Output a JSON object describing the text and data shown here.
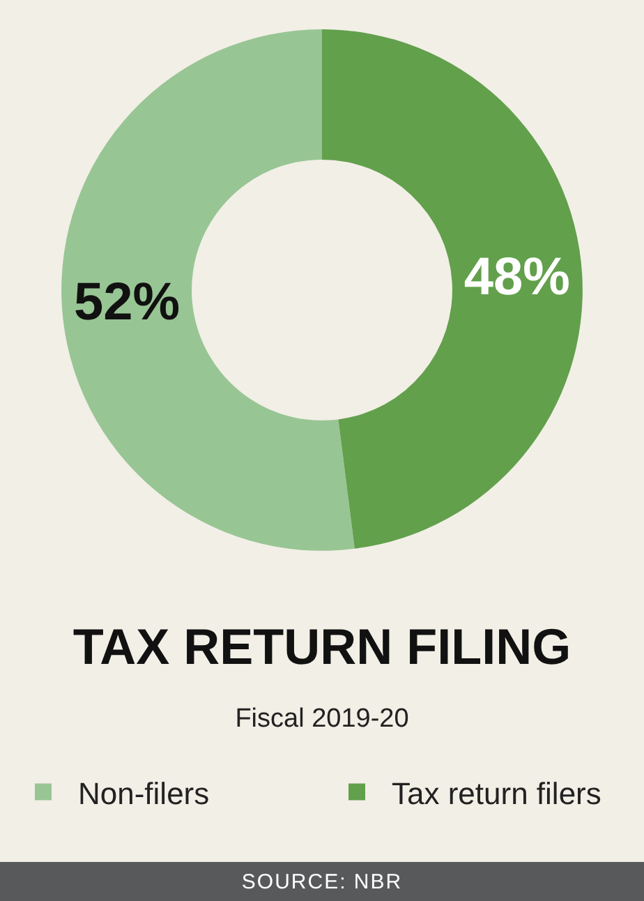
{
  "chart_data": {
    "type": "donut",
    "title": "TAX RETURN FILING",
    "subtitle": "Fiscal 2019-20",
    "categories": [
      "Non-filers",
      "Tax return filers"
    ],
    "values": [
      52,
      48
    ],
    "colors": [
      "#98c594",
      "#62a04c"
    ],
    "value_labels": [
      "52%",
      "48%"
    ],
    "legend": "bottom",
    "annotations": [
      "SOURCE: NBR"
    ]
  }
}
